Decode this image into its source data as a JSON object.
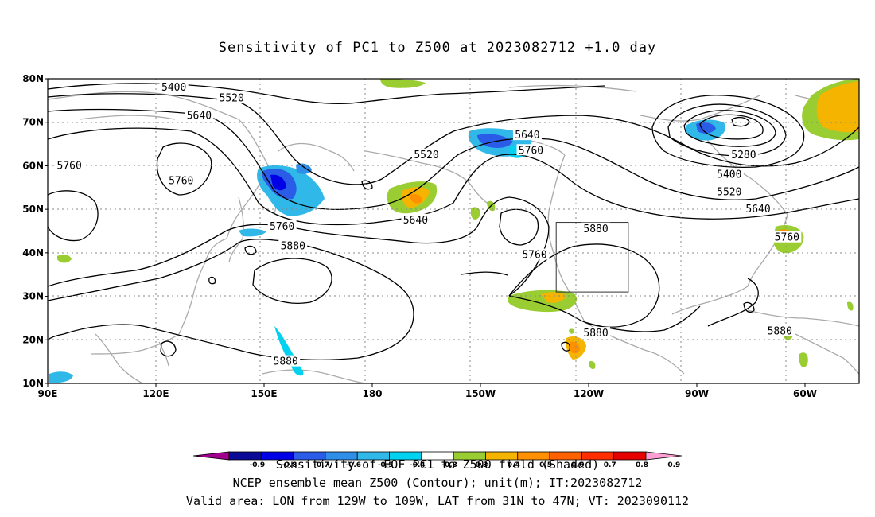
{
  "title": "Sensitivity of PC1 to Z500 at 2023082712 +1.0 day",
  "lat_labels": [
    "80N",
    "70N",
    "60N",
    "50N",
    "40N",
    "30N",
    "20N",
    "10N"
  ],
  "lon_labels": [
    "90E",
    "120E",
    "150E",
    "180",
    "150W",
    "120W",
    "90W",
    "60W"
  ],
  "contour_labels": [
    {
      "text": "5400",
      "lon": 125,
      "lat": 78
    },
    {
      "text": "5520",
      "lon": 141,
      "lat": 75.5
    },
    {
      "text": "5640",
      "lon": 132,
      "lat": 71.5
    },
    {
      "text": "5760",
      "lon": 96,
      "lat": 60
    },
    {
      "text": "5760",
      "lon": 127,
      "lat": 56.5
    },
    {
      "text": "5520",
      "lon": 195,
      "lat": 62.5
    },
    {
      "text": "5640",
      "lon": 223,
      "lat": 67
    },
    {
      "text": "5760",
      "lon": 224,
      "lat": 63.5
    },
    {
      "text": "5640",
      "lon": 192,
      "lat": 47.5
    },
    {
      "text": "5760",
      "lon": 155,
      "lat": 46
    },
    {
      "text": "5880",
      "lon": 158,
      "lat": 41.5
    },
    {
      "text": "5880",
      "lon": 242,
      "lat": 45.5
    },
    {
      "text": "5760",
      "lon": 225,
      "lat": 39.5
    },
    {
      "text": "5280",
      "lon": 283,
      "lat": 62.5
    },
    {
      "text": "5400",
      "lon": 279,
      "lat": 58
    },
    {
      "text": "5520",
      "lon": 279,
      "lat": 54
    },
    {
      "text": "5640",
      "lon": 287,
      "lat": 50
    },
    {
      "text": "5760",
      "lon": 295,
      "lat": 43.5
    },
    {
      "text": "5880",
      "lon": 156,
      "lat": 15
    },
    {
      "text": "5880",
      "lon": 242,
      "lat": 21.5
    },
    {
      "text": "5880",
      "lon": 293,
      "lat": 22
    }
  ],
  "valid_box": {
    "lon_min": 231,
    "lon_max": 251,
    "lat_min": 31,
    "lat_max": 47
  },
  "colorbar": {
    "labels": [
      "-0.9",
      "-0.8",
      "-0.7",
      "-0.6",
      "-0.5",
      "-0.4",
      "-0.3",
      "0.3",
      "0.4",
      "0.5",
      "0.6",
      "0.7",
      "0.8",
      "0.9"
    ],
    "colors": [
      "#a0008c",
      "#0a0a96",
      "#0000e6",
      "#2a5ce8",
      "#2f8fe8",
      "#2fb8e8",
      "#00d2f0",
      "#ffffff",
      "#9acd32",
      "#f4b400",
      "#ff9000",
      "#ff6000",
      "#ff2d00",
      "#e60000",
      "#ff9ed2"
    ]
  },
  "footer": {
    "line1": "Sensitivity of EOF PC1 to Z500 field (Shaded)",
    "line2": "NCEP ensemble mean Z500 (Contour); unit(m); IT:2023082712",
    "line3": "Valid area: LON from 129W to 109W, LAT from 31N to 47N; VT: 2023090112"
  }
}
